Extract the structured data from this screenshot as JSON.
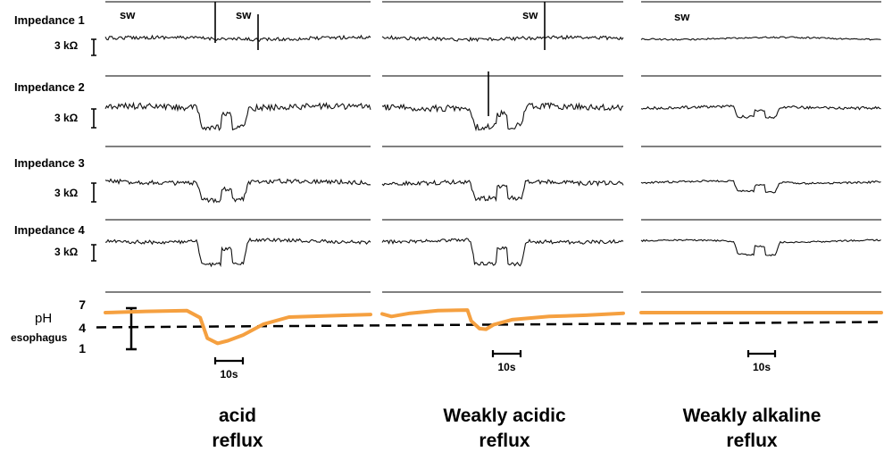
{
  "chart_data": {
    "type": "line",
    "channels": [
      "Impedance 1",
      "Impedance 2",
      "Impedance 3",
      "Impedance 4"
    ],
    "impedance_scale_label": "3 kΩ",
    "swallow_label": "sw",
    "time_scale_label": "10s",
    "ph": {
      "label": "pH",
      "sublabel": "esophagus",
      "ticks": [
        "7",
        "4",
        "1"
      ],
      "threshold": 4,
      "color": "#F5A040"
    },
    "panels": [
      {
        "caption_line1": "acid",
        "caption_line2": "reflux",
        "impedance_drop_start_s": 9,
        "impedance_drop_end_s": 14,
        "ph_curve": [
          [
            0,
            6.3
          ],
          [
            4,
            6.5
          ],
          [
            8,
            6.6
          ],
          [
            9.3,
            5.5
          ],
          [
            10,
            2.3
          ],
          [
            11,
            1.5
          ],
          [
            12,
            1.9
          ],
          [
            13.5,
            2.8
          ],
          [
            15.5,
            4.5
          ],
          [
            18,
            5.6
          ],
          [
            26,
            6
          ]
        ]
      },
      {
        "caption_line1": "Weakly acidic",
        "caption_line2": "reflux",
        "impedance_drop_start_s": 9.5,
        "impedance_drop_end_s": 15.5,
        "ph_curve": [
          [
            0,
            6.1
          ],
          [
            1,
            5.7
          ],
          [
            3,
            6.2
          ],
          [
            6,
            6.6
          ],
          [
            9.2,
            6.7
          ],
          [
            9.6,
            5
          ],
          [
            10.5,
            3.8
          ],
          [
            11.2,
            3.7
          ],
          [
            12,
            4.4
          ],
          [
            14,
            5.2
          ],
          [
            18,
            5.7
          ],
          [
            22,
            5.9
          ],
          [
            26,
            6.2
          ]
        ]
      },
      {
        "caption_line1": "Weakly alkaline",
        "caption_line2": "reflux",
        "impedance_drop_start_s": 10,
        "impedance_drop_end_s": 15,
        "ph_curve": [
          [
            0,
            6.3
          ],
          [
            26,
            6.3
          ]
        ]
      }
    ]
  }
}
